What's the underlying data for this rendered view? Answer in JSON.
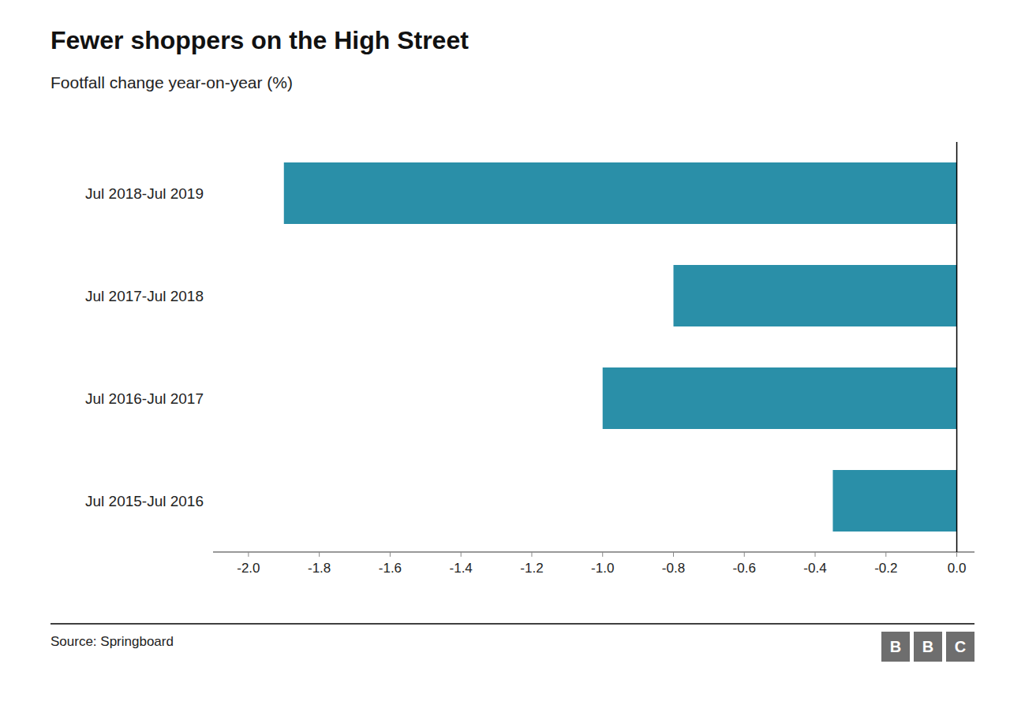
{
  "chart_data": {
    "type": "bar",
    "orientation": "horizontal",
    "title": "Fewer shoppers on the High Street",
    "subtitle": "Footfall change year-on-year (%)",
    "categories": [
      "Jul 2018-Jul 2019",
      "Jul 2017-Jul 2018",
      "Jul 2016-Jul 2017",
      "Jul 2015-Jul 2016"
    ],
    "values": [
      -1.9,
      -0.8,
      -1.0,
      -0.35
    ],
    "color": "#2a8fa8",
    "xlim": [
      -2.1,
      0.05
    ],
    "xticks": [
      {
        "value": -2.0,
        "label": "-2.0"
      },
      -1.8,
      -1.6,
      -1.4,
      -1.2,
      {
        "value": -1.0,
        "label": "-1.0"
      },
      -0.8,
      -0.6,
      -0.4,
      -0.2,
      {
        "value": 0.0,
        "label": "0.0"
      }
    ],
    "grid": false,
    "source": "Source: Springboard",
    "logo": [
      "B",
      "B",
      "C"
    ]
  }
}
